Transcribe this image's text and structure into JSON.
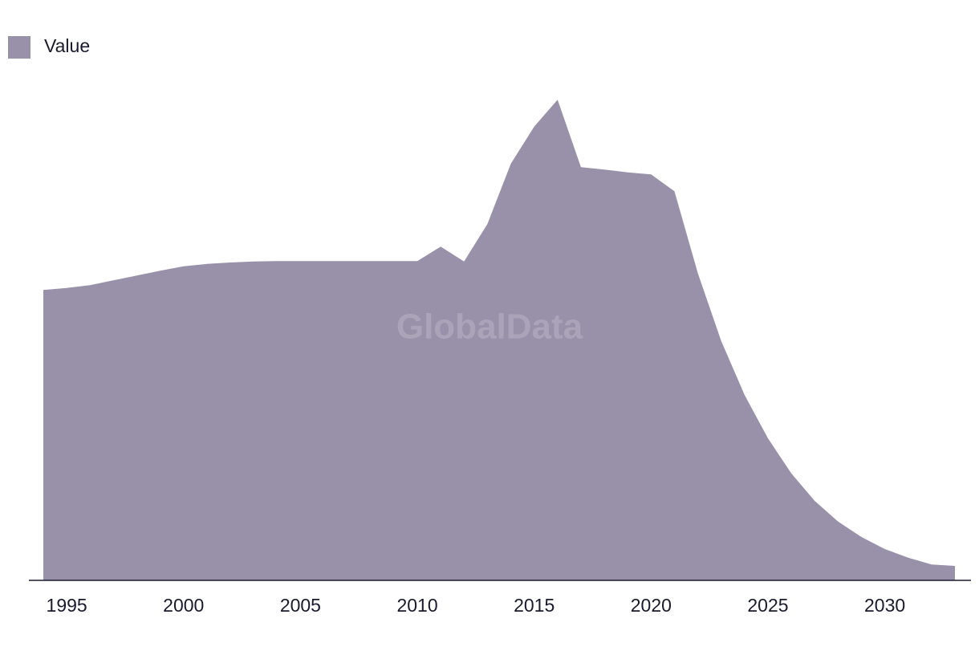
{
  "chart_data": {
    "type": "area",
    "watermark": "GlobalData",
    "x": [
      1994,
      1995,
      1996,
      1997,
      1998,
      1999,
      2000,
      2001,
      2002,
      2003,
      2004,
      2005,
      2006,
      2007,
      2008,
      2009,
      2010,
      2011,
      2012,
      2013,
      2014,
      2015,
      2016,
      2017,
      2018,
      2019,
      2020,
      2021,
      2022,
      2023,
      2024,
      2025,
      2026,
      2027,
      2028,
      2029,
      2030,
      2031,
      2032,
      2033
    ],
    "series": [
      {
        "name": "Value",
        "color": "#9990aa",
        "values": [
          60.3,
          60.7,
          61.3,
          62.3,
          63.3,
          64.3,
          65.2,
          65.7,
          66,
          66.2,
          66.3,
          66.3,
          66.3,
          66.3,
          66.3,
          66.3,
          66.3,
          69.3,
          66.2,
          74,
          86.5,
          94.2,
          99.8,
          85.8,
          85.3,
          84.7,
          84.3,
          80.8,
          63.8,
          49.7,
          38.5,
          29.5,
          22.2,
          16.5,
          12.2,
          9,
          6.5,
          4.7,
          3.3,
          3
        ]
      }
    ],
    "xlim": [
      1994,
      2033
    ],
    "xticks": [
      1995,
      2000,
      2005,
      2010,
      2015,
      2020,
      2025,
      2030
    ],
    "ylim": [
      0,
      100
    ],
    "grid": false,
    "legend": "top-left"
  }
}
